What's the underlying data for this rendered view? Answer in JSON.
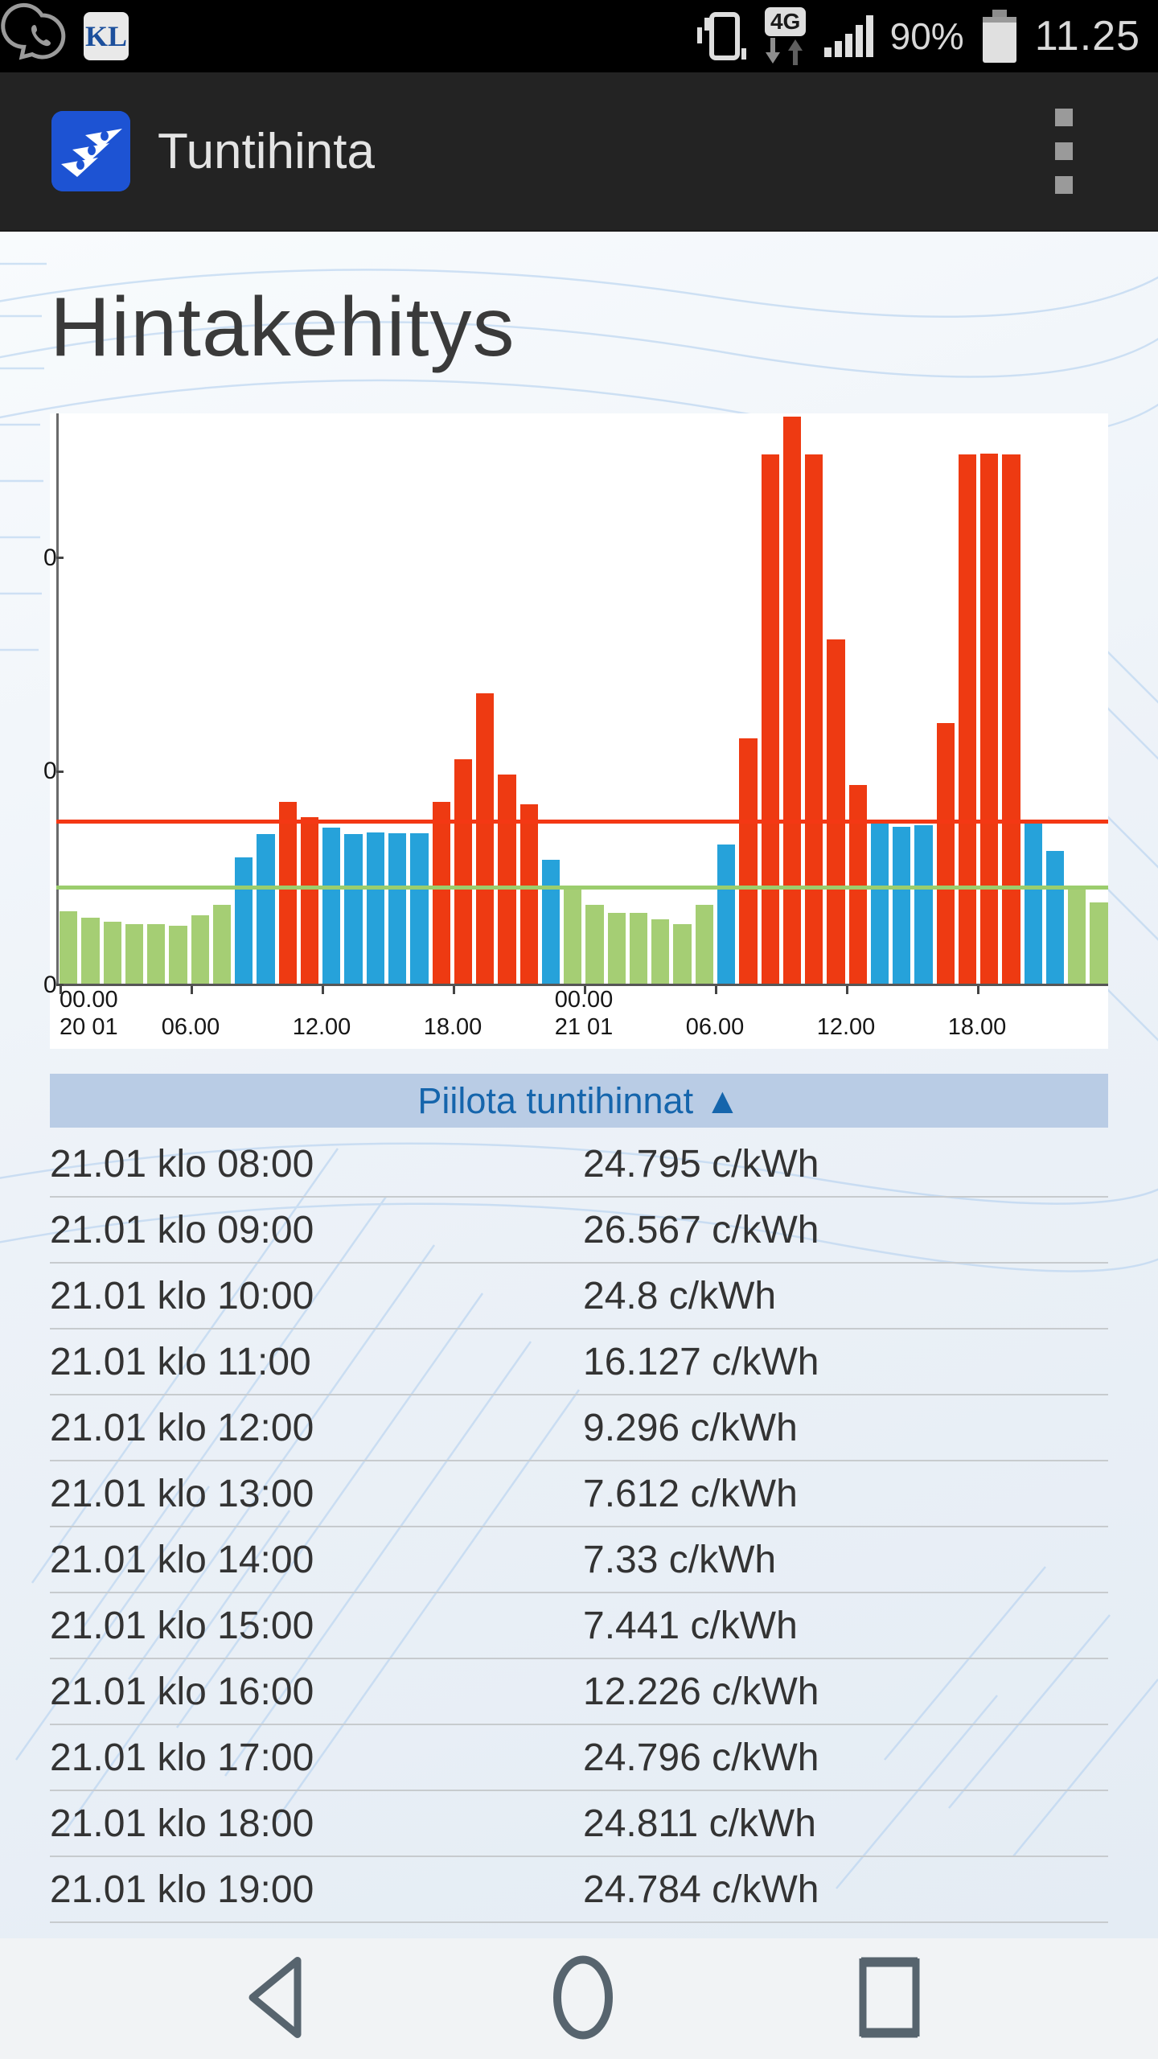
{
  "status_bar": {
    "time": "11.25",
    "battery_percent": "90%",
    "network_badge": "4G",
    "notifications": [
      "whatsapp",
      "KL"
    ],
    "kl_label": "KL"
  },
  "app_bar": {
    "title": "Tuntihinta"
  },
  "page": {
    "heading": "Hintakehitys"
  },
  "toggle_button": {
    "label": "Piilota tuntihinnat",
    "arrow": "▲"
  },
  "chart_data": {
    "type": "bar",
    "title": "Hintakehitys",
    "unit": "c/kWh",
    "y_axis": {
      "max": 26.6,
      "tick_values": [
        0,
        10,
        20
      ],
      "tick_labels_shown": [
        "0",
        "0",
        "0"
      ]
    },
    "x_axis": {
      "bars_total": 48,
      "ticks": [
        {
          "index": 0,
          "label": "00.00",
          "sub": "20 01"
        },
        {
          "index": 6,
          "label": "06.00",
          "sub": ""
        },
        {
          "index": 12,
          "label": "12.00",
          "sub": ""
        },
        {
          "index": 18,
          "label": "18.00",
          "sub": ""
        },
        {
          "index": 24,
          "label": "00.00",
          "sub": "21 01"
        },
        {
          "index": 30,
          "label": "06.00",
          "sub": ""
        },
        {
          "index": 36,
          "label": "12.00",
          "sub": ""
        },
        {
          "index": 42,
          "label": "18.00",
          "sub": ""
        }
      ]
    },
    "reference_lines": {
      "red_line_value": 7.56,
      "green_line_value": 4.5
    },
    "colors": {
      "low": "#a5ce74",
      "mid": "#26a2da",
      "high": "#ee3a12",
      "red_line": "#f43814",
      "green_line": "#9bcd6d"
    },
    "series": [
      {
        "date": "20 01",
        "values": [
          3.4,
          3.1,
          2.9,
          2.8,
          2.8,
          2.7,
          3.2,
          3.7,
          5.9,
          7.0,
          8.5,
          7.8,
          7.3,
          7.0,
          7.1,
          7.05,
          7.05,
          8.5,
          10.5,
          13.6,
          9.8,
          8.4,
          5.8,
          4.6
        ],
        "levels": [
          "g",
          "g",
          "g",
          "g",
          "g",
          "g",
          "g",
          "g",
          "b",
          "b",
          "r",
          "r",
          "b",
          "b",
          "b",
          "b",
          "b",
          "r",
          "r",
          "r",
          "r",
          "r",
          "b",
          "g"
        ]
      },
      {
        "date": "21 01",
        "values": [
          3.7,
          3.3,
          3.3,
          3.0,
          2.8,
          3.7,
          6.5,
          11.5,
          24.795,
          26.567,
          24.8,
          16.127,
          9.296,
          7.612,
          7.33,
          7.441,
          12.226,
          24.796,
          24.811,
          24.784,
          7.66,
          6.2,
          4.5,
          3.8
        ],
        "levels": [
          "g",
          "g",
          "g",
          "g",
          "g",
          "g",
          "b",
          "r",
          "r",
          "r",
          "r",
          "r",
          "r",
          "b",
          "b",
          "b",
          "r",
          "r",
          "r",
          "r",
          "b",
          "b",
          "g",
          "g"
        ]
      }
    ]
  },
  "price_table": {
    "rows": [
      {
        "time": "21.01 klo 08:00",
        "price": "24.795 c/kWh"
      },
      {
        "time": "21.01 klo 09:00",
        "price": "26.567 c/kWh"
      },
      {
        "time": "21.01 klo 10:00",
        "price": "24.8 c/kWh"
      },
      {
        "time": "21.01 klo 11:00",
        "price": "16.127 c/kWh"
      },
      {
        "time": "21.01 klo 12:00",
        "price": "9.296 c/kWh"
      },
      {
        "time": "21.01 klo 13:00",
        "price": "7.612 c/kWh"
      },
      {
        "time": "21.01 klo 14:00",
        "price": "7.33 c/kWh"
      },
      {
        "time": "21.01 klo 15:00",
        "price": "7.441 c/kWh"
      },
      {
        "time": "21.01 klo 16:00",
        "price": "12.226 c/kWh"
      },
      {
        "time": "21.01 klo 17:00",
        "price": "24.796 c/kWh"
      },
      {
        "time": "21.01 klo 18:00",
        "price": "24.811 c/kWh"
      },
      {
        "time": "21.01 klo 19:00",
        "price": "24.784 c/kWh"
      }
    ]
  },
  "nav_bar": {
    "buttons": [
      "back",
      "home",
      "recents"
    ]
  }
}
